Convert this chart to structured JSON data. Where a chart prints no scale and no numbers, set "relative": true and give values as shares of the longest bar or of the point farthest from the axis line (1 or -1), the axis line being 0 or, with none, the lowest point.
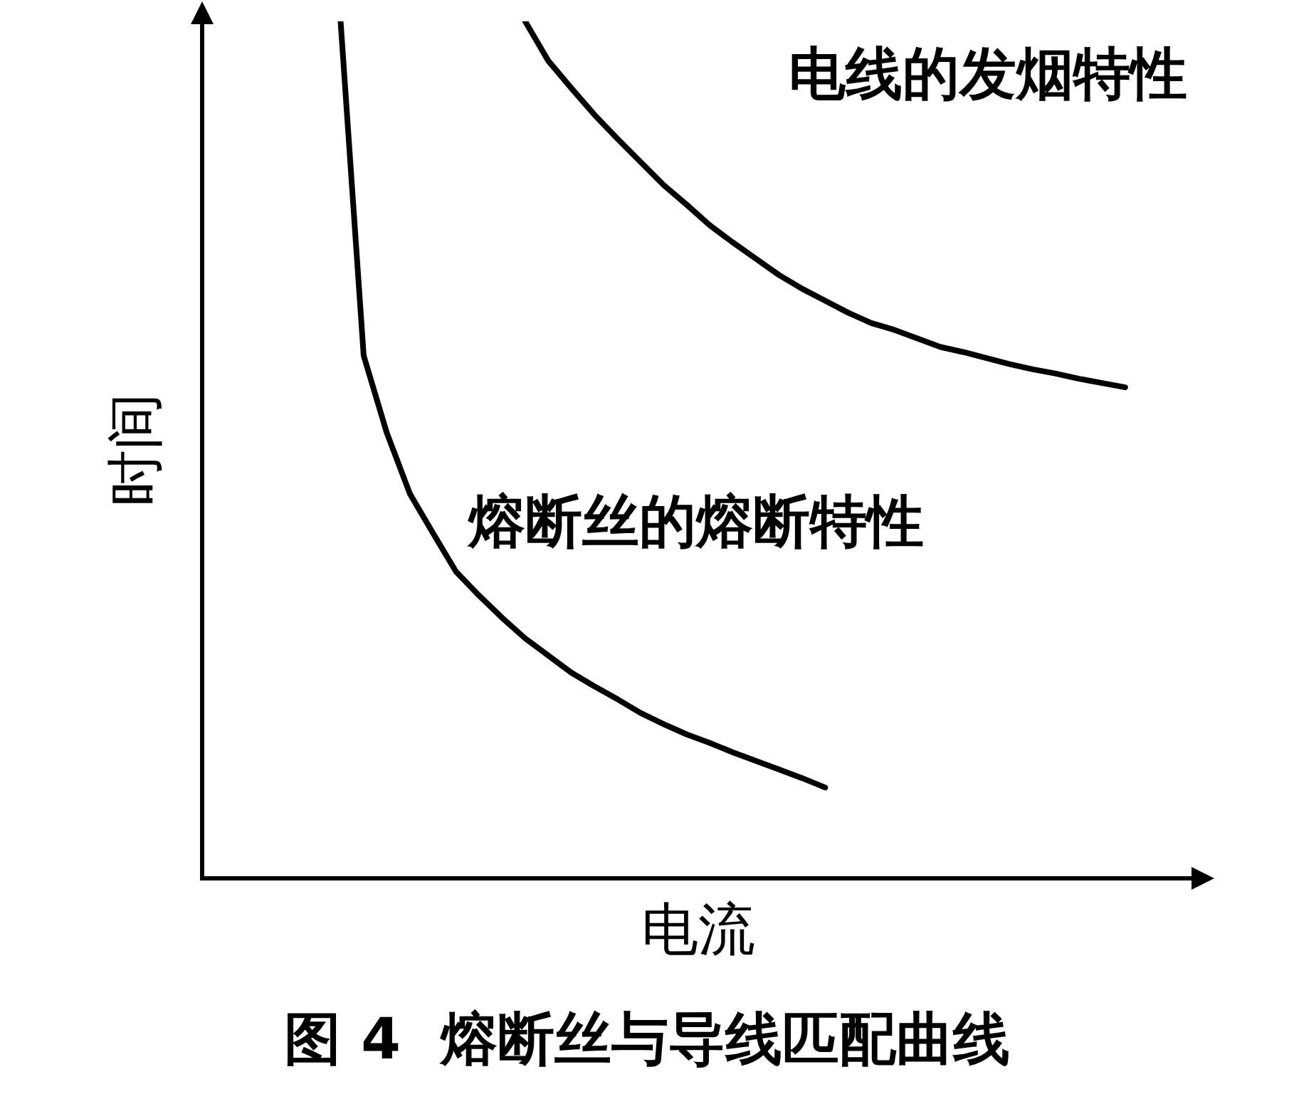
{
  "chart_data": {
    "type": "line",
    "title": "图 4  熔断丝与导线匹配曲线",
    "xlabel": "电流",
    "ylabel": "时间",
    "relative": true,
    "grid": false,
    "legend": false,
    "marker": "none",
    "line_style": "solid",
    "categories": [
      null,
      null,
      null,
      null,
      null,
      null,
      null,
      null,
      null,
      null,
      null,
      null,
      null,
      null,
      null,
      null,
      null,
      null,
      null,
      null,
      null,
      null,
      null,
      null,
      null,
      null,
      null,
      null,
      null,
      null,
      null,
      null,
      null,
      null,
      null,
      null,
      null,
      null,
      null,
      null,
      null,
      null,
      null,
      null
    ],
    "series": [
      {
        "name": "电线的发烟特性",
        "color": "#000000",
        "values": [
          null,
          null,
          null,
          null,
          null,
          null,
          null,
          null,
          null,
          null,
          null,
          null,
          null,
          null,
          1.0,
          0.954,
          0.922,
          0.891,
          0.863,
          0.836,
          0.809,
          0.786,
          0.762,
          0.742,
          0.723,
          0.704,
          0.688,
          0.674,
          0.66,
          0.648,
          0.64,
          0.63,
          0.62,
          0.614,
          0.607,
          0.6,
          0.594,
          0.589,
          0.583,
          0.578,
          0.573,
          null,
          null,
          null
        ]
      },
      {
        "name": "熔断丝的熔断特性",
        "color": "#000000",
        "values": [
          null,
          null,
          null,
          null,
          null,
          null,
          1.0,
          0.61,
          0.52,
          0.449,
          0.403,
          0.358,
          0.33,
          0.304,
          0.28,
          0.26,
          0.24,
          0.224,
          0.209,
          0.193,
          0.18,
          0.168,
          0.158,
          0.147,
          0.137,
          0.127,
          0.117,
          0.106,
          null,
          null,
          null,
          null,
          null,
          null,
          null,
          null,
          null,
          null,
          null,
          null,
          null,
          null,
          null,
          null
        ]
      }
    ]
  }
}
